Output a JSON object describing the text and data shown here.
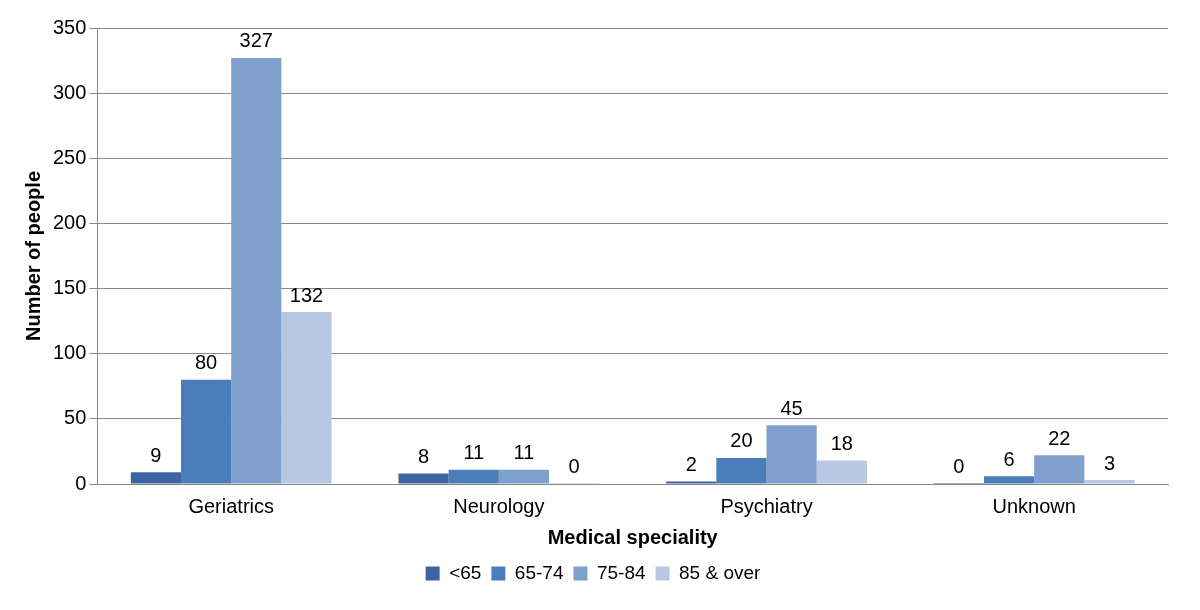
{
  "chart_data": {
    "type": "bar",
    "xlabel": "Medical speciality",
    "ylabel": "Number of people",
    "categories": [
      "Geriatrics",
      "Neurology",
      "Psychiatry",
      "Unknown"
    ],
    "series": [
      {
        "name": "<65",
        "color": "#3c64a0",
        "values": [
          9,
          8,
          2,
          0
        ]
      },
      {
        "name": "65-74",
        "color": "#4a7ebb",
        "values": [
          80,
          11,
          20,
          6
        ]
      },
      {
        "name": "75-84",
        "color": "#7f9fcc",
        "values": [
          327,
          11,
          45,
          22
        ]
      },
      {
        "name": "85 & over",
        "color": "#b8c7e2",
        "values": [
          132,
          0,
          18,
          3
        ]
      }
    ],
    "ylim": [
      0,
      350
    ],
    "yticks": [
      0,
      50,
      100,
      150,
      200,
      250,
      300,
      350
    ],
    "grid": "y",
    "legend": "bottom",
    "data_labels": true
  }
}
